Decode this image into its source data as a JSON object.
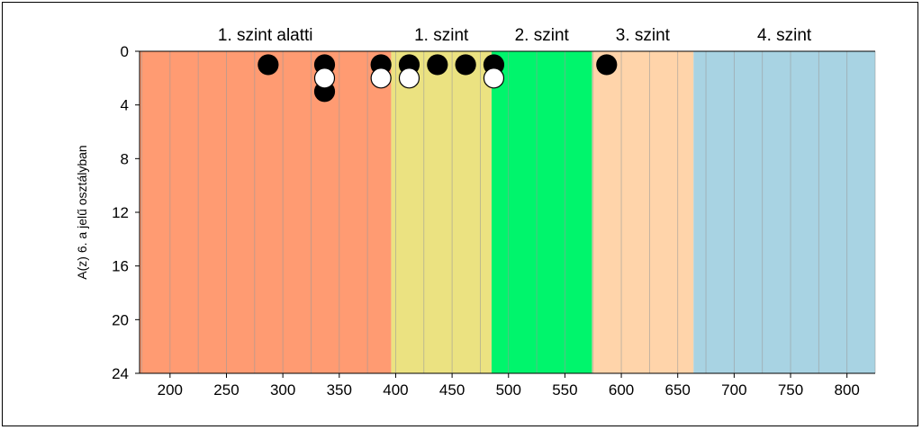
{
  "chart_data": {
    "type": "scatter",
    "ylabel": "A(z) 6. a jelű osztályban",
    "xlabel": "",
    "xlim": [
      173,
      825
    ],
    "ylim": [
      0,
      24
    ],
    "y_inverted": true,
    "x_ticks": [
      200,
      250,
      300,
      350,
      400,
      450,
      500,
      550,
      600,
      650,
      700,
      750,
      800
    ],
    "y_ticks": [
      0,
      4,
      8,
      12,
      16,
      20,
      24
    ],
    "grid": "vertical",
    "bands": [
      {
        "label": "1. szint alatti",
        "from": 173,
        "to": 396,
        "color": "#FF9B72"
      },
      {
        "label": "1. szint",
        "from": 396,
        "to": 485,
        "color": "#EBE281"
      },
      {
        "label": "2. szint",
        "from": 485,
        "to": 574,
        "color": "#00F56C"
      },
      {
        "label": "3. szint",
        "from": 574,
        "to": 664,
        "color": "#FFD4AA"
      },
      {
        "label": "4. szint",
        "from": 664,
        "to": 825,
        "color": "#A8D3E3"
      }
    ],
    "series": [
      {
        "fill": "#000000",
        "points": [
          {
            "x": 287,
            "y": 1
          },
          {
            "x": 337,
            "y": 1
          },
          {
            "x": 337,
            "y": 3
          },
          {
            "x": 387,
            "y": 1
          },
          {
            "x": 412,
            "y": 1
          },
          {
            "x": 437,
            "y": 1
          },
          {
            "x": 462,
            "y": 1
          },
          {
            "x": 487,
            "y": 1
          },
          {
            "x": 587,
            "y": 1
          }
        ]
      },
      {
        "fill": "#ffffff",
        "points": [
          {
            "x": 337,
            "y": 2
          },
          {
            "x": 387,
            "y": 2
          },
          {
            "x": 412,
            "y": 2
          },
          {
            "x": 487,
            "y": 2
          }
        ]
      }
    ]
  }
}
